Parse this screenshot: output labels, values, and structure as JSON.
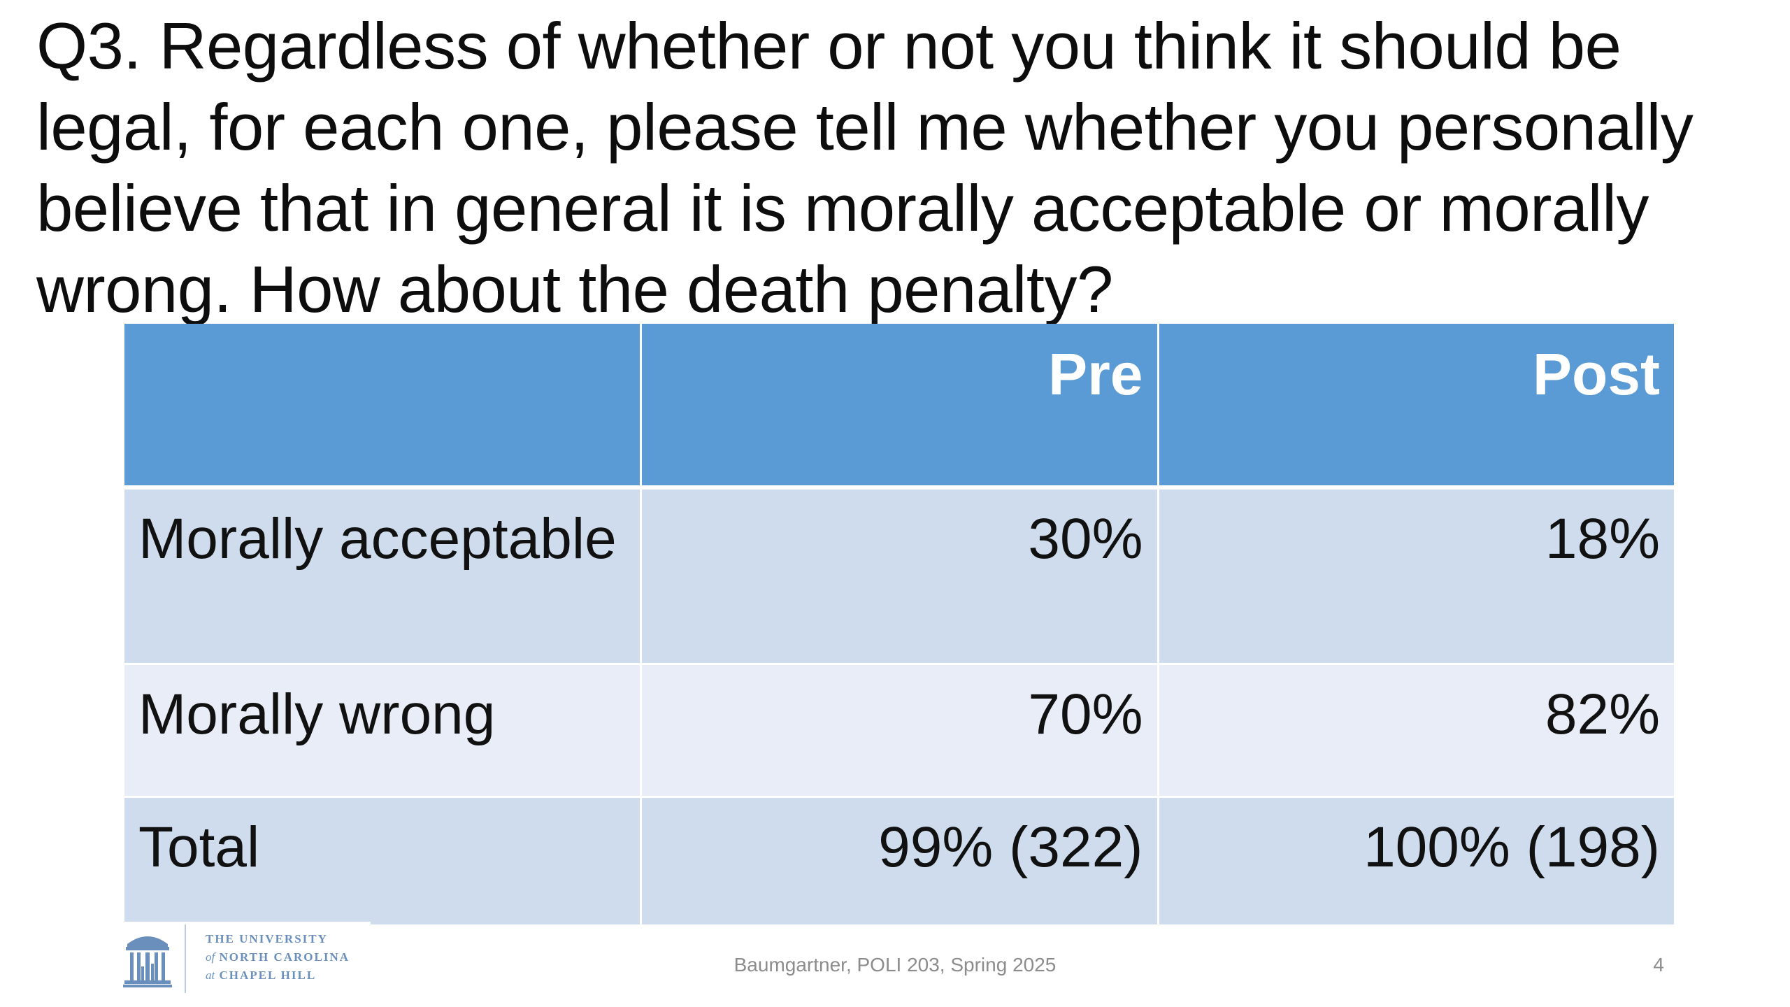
{
  "slide": {
    "question": "Q3. Regardless of whether or not you think it should be legal, for each one, please tell me whether you personally believe that in general it is morally acceptable or morally wrong. How about the death penalty?",
    "table": {
      "headers": [
        "",
        "Pre",
        "Post"
      ],
      "rows": [
        {
          "label": "Morally acceptable",
          "pre": "30%",
          "post": "18%"
        },
        {
          "label": "Morally wrong",
          "pre": "70%",
          "post": "82%"
        },
        {
          "label": "Total",
          "pre": "99% (322)",
          "post": "100% (198)"
        }
      ],
      "colors": {
        "header": "#5b9bd5",
        "row_dark": "#cfdcee",
        "row_light": "#e8edf7"
      }
    },
    "logo": {
      "line1": "THE UNIVERSITY",
      "line2_prefix": "of",
      "line2": "NORTH CAROLINA",
      "line3_prefix": "at",
      "line3": "CHAPEL HILL",
      "icon": "old-well-icon"
    },
    "footer": "Baumgartner, POLI 203, Spring 2025",
    "page_number": "4"
  }
}
